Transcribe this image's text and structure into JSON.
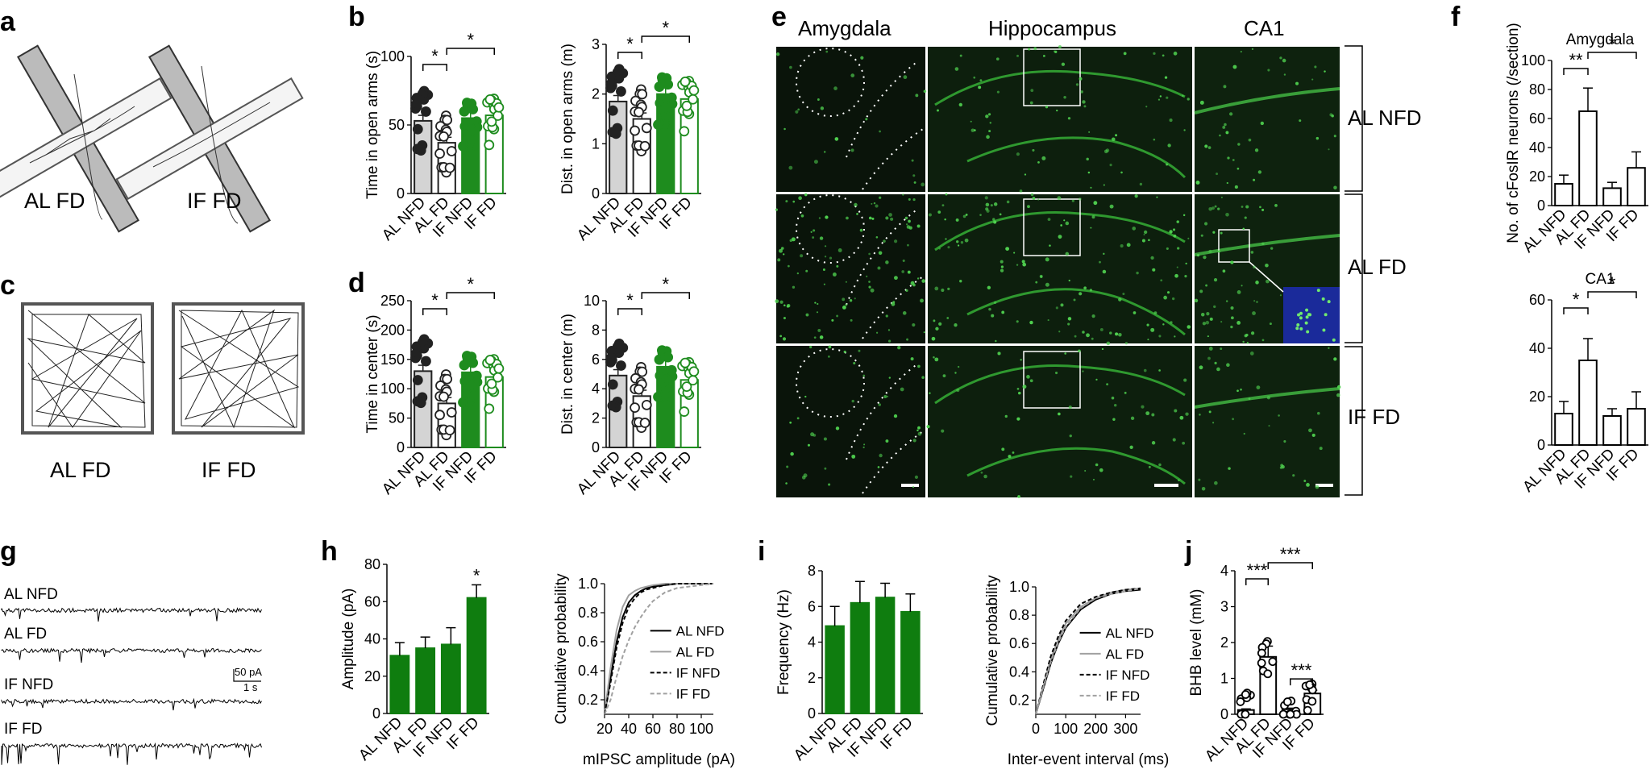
{
  "panel_labels": {
    "a": "a",
    "b": "b",
    "c": "c",
    "d": "d",
    "e": "e",
    "f": "f",
    "g": "g",
    "h": "h",
    "i": "i",
    "j": "j"
  },
  "colors": {
    "al_fill": "#d4d4d4",
    "if_green": "#1e8c1e",
    "bar_green": "#0f7d0f",
    "micro_bg": "#0a140a",
    "micro_green": "#38b838",
    "dapi": "#1a2a9a"
  },
  "groups": [
    "AL NFD",
    "AL FD",
    "IF NFD",
    "IF FD"
  ],
  "sig": {
    "single": "*",
    "double": "**",
    "triple": "***"
  },
  "panel_a": {
    "labels": [
      "AL FD",
      "IF FD"
    ]
  },
  "panel_c": {
    "labels": [
      "AL FD",
      "IF FD"
    ]
  },
  "panel_e": {
    "columns": [
      "Amygdala",
      "Hippocampus",
      "CA1"
    ],
    "rows": [
      "AL NFD",
      "AL FD",
      "IF FD"
    ]
  },
  "panel_g": {
    "traces": [
      "AL NFD",
      "AL FD",
      "IF NFD",
      "IF FD"
    ],
    "scale_y": "50 pA",
    "scale_x": "1 s"
  },
  "chart_data": [
    {
      "id": "b1",
      "type": "bar",
      "title": "",
      "ylabel": "Time in open arms (s)",
      "categories": [
        "AL NFD",
        "AL FD",
        "IF NFD",
        "IF FD"
      ],
      "values": [
        53,
        37,
        55,
        57
      ],
      "ylim": [
        0,
        100
      ],
      "yticks": [
        0,
        50,
        100
      ],
      "sig": [
        {
          "a": 0,
          "b": 1,
          "label": "*"
        },
        {
          "a": 1,
          "b": 3,
          "label": "*"
        }
      ]
    },
    {
      "id": "b2",
      "type": "bar",
      "title": "",
      "ylabel": "Dist. in open arms (m)",
      "categories": [
        "AL NFD",
        "AL FD",
        "IF NFD",
        "IF FD"
      ],
      "values": [
        1.85,
        1.5,
        2.0,
        1.9
      ],
      "ylim": [
        0,
        3
      ],
      "yticks": [
        0,
        1,
        2,
        3
      ],
      "sig": [
        {
          "a": 0,
          "b": 1,
          "label": "*"
        },
        {
          "a": 1,
          "b": 3,
          "label": "*"
        }
      ]
    },
    {
      "id": "d1",
      "type": "bar",
      "title": "",
      "ylabel": "Time in center (s)",
      "categories": [
        "AL NFD",
        "AL FD",
        "IF NFD",
        "IF FD"
      ],
      "values": [
        130,
        75,
        128,
        120
      ],
      "ylim": [
        0,
        250
      ],
      "yticks": [
        0,
        50,
        100,
        150,
        200,
        250
      ],
      "sig": [
        {
          "a": 0,
          "b": 1,
          "label": "*"
        },
        {
          "a": 1,
          "b": 3,
          "label": "*"
        }
      ]
    },
    {
      "id": "d2",
      "type": "bar",
      "title": "",
      "ylabel": "Dist. in center (m)",
      "categories": [
        "AL NFD",
        "AL FD",
        "IF NFD",
        "IF FD"
      ],
      "values": [
        4.9,
        3.5,
        5.5,
        4.6
      ],
      "ylim": [
        0,
        10
      ],
      "yticks": [
        0,
        2,
        4,
        6,
        8,
        10
      ],
      "sig": [
        {
          "a": 0,
          "b": 1,
          "label": "*"
        },
        {
          "a": 1,
          "b": 3,
          "label": "*"
        }
      ]
    },
    {
      "id": "f1",
      "type": "bar",
      "title": "Amygdala",
      "ylabel": "No. of cFosIR neurons (/section)",
      "categories": [
        "AL NFD",
        "AL FD",
        "IF NFD",
        "IF FD"
      ],
      "values": [
        15,
        65,
        12,
        26
      ],
      "errors": [
        6,
        16,
        4,
        11
      ],
      "ylim": [
        0,
        100
      ],
      "yticks": [
        0,
        20,
        40,
        60,
        80,
        100
      ],
      "sig": [
        {
          "a": 0,
          "b": 1,
          "label": "**"
        },
        {
          "a": 1,
          "b": 3,
          "label": "*"
        }
      ]
    },
    {
      "id": "f2",
      "type": "bar",
      "title": "CA1",
      "ylabel": "",
      "categories": [
        "AL NFD",
        "AL FD",
        "IF NFD",
        "IF FD"
      ],
      "values": [
        13,
        35,
        12,
        15
      ],
      "errors": [
        5,
        9,
        3,
        7
      ],
      "ylim": [
        0,
        60
      ],
      "yticks": [
        0,
        20,
        40,
        60
      ],
      "sig": [
        {
          "a": 0,
          "b": 1,
          "label": "*"
        },
        {
          "a": 1,
          "b": 3,
          "label": "*"
        }
      ]
    },
    {
      "id": "h1",
      "type": "bar",
      "title": "",
      "ylabel": "Amplitude (pA)",
      "categories": [
        "AL NFD",
        "AL FD",
        "IF NFD",
        "IF FD"
      ],
      "values": [
        31,
        35,
        37,
        62
      ],
      "errors": [
        7,
        6,
        9,
        7
      ],
      "ylim": [
        0,
        80
      ],
      "yticks": [
        0,
        20,
        40,
        60,
        80
      ],
      "stars": [
        {
          "i": 3,
          "label": "*"
        }
      ]
    },
    {
      "id": "h2",
      "type": "line",
      "title": "",
      "xlabel": "mIPSC amplitude (pA)",
      "ylabel": "Cumulative probability",
      "xlim": [
        20,
        110
      ],
      "ylim": [
        0.1,
        1.0
      ],
      "xticks": [
        20,
        40,
        60,
        80,
        100
      ],
      "yticks": [
        0.2,
        0.4,
        0.6,
        0.8,
        1.0
      ],
      "series": [
        {
          "name": "AL NFD",
          "x": [
            20,
            25,
            30,
            35,
            40,
            45,
            50,
            55,
            60,
            70,
            80,
            100,
            110
          ],
          "values": [
            0.1,
            0.35,
            0.6,
            0.77,
            0.87,
            0.92,
            0.95,
            0.97,
            0.98,
            0.99,
            1.0,
            1.0,
            1.0
          ]
        },
        {
          "name": "AL FD",
          "x": [
            20,
            25,
            30,
            35,
            40,
            45,
            50,
            55,
            60,
            70,
            80,
            100,
            110
          ],
          "values": [
            0.1,
            0.42,
            0.68,
            0.84,
            0.92,
            0.95,
            0.97,
            0.98,
            0.99,
            1.0,
            1.0,
            1.0,
            1.0
          ]
        },
        {
          "name": "IF NFD",
          "x": [
            20,
            25,
            30,
            35,
            40,
            45,
            50,
            55,
            60,
            70,
            80,
            100,
            110
          ],
          "values": [
            0.1,
            0.32,
            0.56,
            0.73,
            0.84,
            0.9,
            0.94,
            0.96,
            0.97,
            0.99,
            1.0,
            1.0,
            1.0
          ]
        },
        {
          "name": "IF FD",
          "x": [
            20,
            25,
            30,
            35,
            40,
            45,
            50,
            55,
            60,
            70,
            80,
            100,
            110
          ],
          "values": [
            0.1,
            0.2,
            0.36,
            0.5,
            0.61,
            0.7,
            0.77,
            0.83,
            0.88,
            0.94,
            0.97,
            0.99,
            1.0
          ]
        }
      ]
    },
    {
      "id": "i1",
      "type": "bar",
      "title": "",
      "ylabel": "Frequency (Hz)",
      "categories": [
        "AL NFD",
        "AL FD",
        "IF NFD",
        "IF FD"
      ],
      "values": [
        4.9,
        6.2,
        6.5,
        5.7
      ],
      "errors": [
        1.1,
        1.2,
        0.8,
        1.0
      ],
      "ylim": [
        0,
        8
      ],
      "yticks": [
        0,
        2,
        4,
        6,
        8
      ]
    },
    {
      "id": "i2",
      "type": "line",
      "title": "",
      "xlabel": "Inter-event interval (ms)",
      "ylabel": "Cumulative probability",
      "xlim": [
        0,
        350
      ],
      "ylim": [
        0.1,
        1.0
      ],
      "xticks": [
        0,
        100,
        200,
        300
      ],
      "yticks": [
        0.2,
        0.4,
        0.6,
        0.8,
        1.0
      ],
      "series": [
        {
          "name": "AL NFD",
          "x": [
            0,
            25,
            50,
            75,
            100,
            150,
            200,
            250,
            300,
            350
          ],
          "values": [
            0.1,
            0.28,
            0.46,
            0.6,
            0.71,
            0.84,
            0.91,
            0.95,
            0.97,
            0.98
          ]
        },
        {
          "name": "AL FD",
          "x": [
            0,
            25,
            50,
            75,
            100,
            150,
            200,
            250,
            300,
            350
          ],
          "values": [
            0.1,
            0.3,
            0.49,
            0.63,
            0.74,
            0.86,
            0.92,
            0.96,
            0.98,
            0.99
          ]
        },
        {
          "name": "IF NFD",
          "x": [
            0,
            25,
            50,
            75,
            100,
            150,
            200,
            250,
            300,
            350
          ],
          "values": [
            0.1,
            0.31,
            0.51,
            0.65,
            0.76,
            0.88,
            0.93,
            0.96,
            0.98,
            0.99
          ]
        },
        {
          "name": "IF FD",
          "x": [
            0,
            25,
            50,
            75,
            100,
            150,
            200,
            250,
            300,
            350
          ],
          "values": [
            0.1,
            0.29,
            0.47,
            0.61,
            0.72,
            0.85,
            0.92,
            0.95,
            0.97,
            0.99
          ]
        }
      ]
    },
    {
      "id": "j1",
      "type": "bar",
      "title": "",
      "ylabel": "BHB level (mM)",
      "categories": [
        "AL NFD",
        "AL FD",
        "IF NFD",
        "IF FD"
      ],
      "values": [
        0.12,
        1.6,
        0.14,
        0.58
      ],
      "errors": [
        0.03,
        0.3,
        0.03,
        0.09
      ],
      "ylim": [
        0,
        4
      ],
      "yticks": [
        0,
        1,
        2,
        3,
        4
      ],
      "sig": [
        {
          "a": 0,
          "b": 1,
          "label": "***"
        },
        {
          "a": 1,
          "b": 3,
          "label": "***"
        },
        {
          "a": 2,
          "b": 3,
          "label": "***"
        }
      ]
    }
  ]
}
